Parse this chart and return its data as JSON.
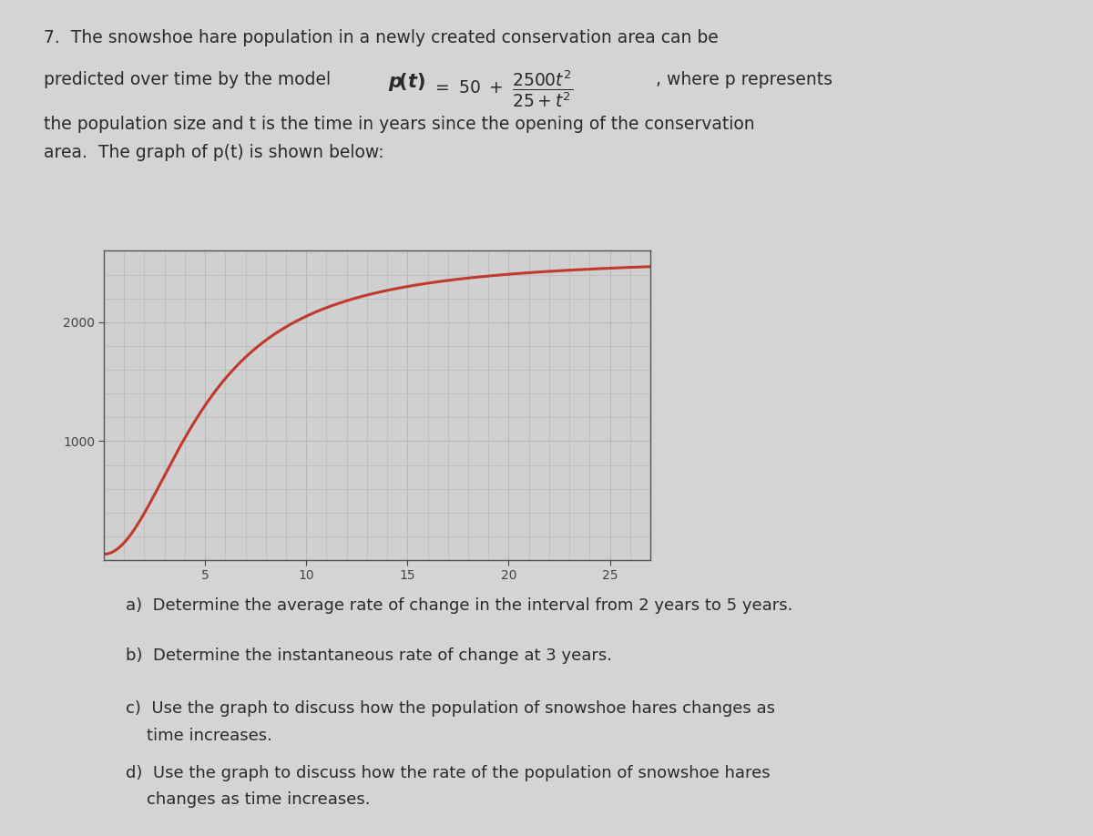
{
  "curve_color": "#c0392b",
  "grid_major_color": "#b8b8b8",
  "grid_minor_color": "#c8c8c8",
  "background_color": "#d4d4d4",
  "plot_bg_color": "#d0d0d0",
  "xlim": [
    0,
    27
  ],
  "ylim": [
    0,
    2600
  ],
  "xticks": [
    5,
    10,
    15,
    20,
    25
  ],
  "yticks": [
    1000,
    2000
  ],
  "fig_width": 12.0,
  "fig_height": 9.18,
  "text_color": "#2a2a2a",
  "tick_color": "#444444",
  "line1": "7.  The snowshoe hare population in a newly created conservation area can be",
  "line2_pre": "predicted over time by the model ",
  "line2_post": ", where p represents",
  "line3": "the population size and t is the time in years since the opening of the conservation",
  "line4": "area.  The graph of p(t) is shown below:",
  "q_a": "a)  Determine the average rate of change in the interval from 2 years to 5 years.",
  "q_b": "b)  Determine the instantaneous rate of change at 3 years.",
  "q_c1": "c)  Use the graph to discuss how the population of snowshoe hares changes as",
  "q_c2": "    time increases.",
  "q_d1": "d)  Use the graph to discuss how the rate of the population of snowshoe hares",
  "q_d2": "    changes as time increases."
}
